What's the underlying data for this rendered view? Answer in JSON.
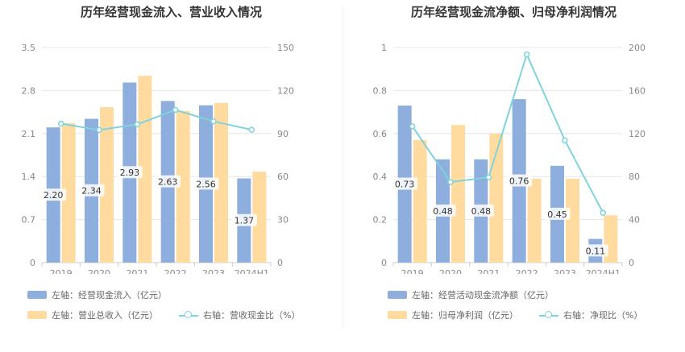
{
  "chart_data": [
    {
      "type": "bar",
      "title": "历年经营现金流入、营业收入情况",
      "categories": [
        "2019",
        "2020",
        "2021",
        "2022",
        "2023",
        "2024H1"
      ],
      "left_axis": {
        "ylim": [
          0,
          3.5
        ],
        "ticks": [
          "0",
          "0.7",
          "1.4",
          "2.1",
          "2.8",
          "3.5"
        ]
      },
      "right_axis": {
        "ylim": [
          0,
          150
        ],
        "ticks": [
          "0",
          "30",
          "60",
          "90",
          "120",
          "150"
        ]
      },
      "series": [
        {
          "name": "左轴：经营现金流入（亿元）",
          "axis": "left",
          "kind": "bar",
          "color": "#8eaedd",
          "values": [
            2.2,
            2.34,
            2.93,
            2.63,
            2.56,
            1.37
          ],
          "labels": [
            "2.20",
            "2.34",
            "2.93",
            "2.63",
            "2.56",
            "1.37"
          ]
        },
        {
          "name": "左轴：营业总收入（亿元）",
          "axis": "left",
          "kind": "bar",
          "color": "#ffdba0",
          "values": [
            2.27,
            2.53,
            3.04,
            2.47,
            2.6,
            1.48
          ]
        },
        {
          "name": "右轴：营收现金比（%）",
          "axis": "right",
          "kind": "line",
          "color": "#7fd3dc",
          "values": [
            96.9,
            92.5,
            96.4,
            106.5,
            98.5,
            92.6
          ]
        }
      ],
      "legend": [
        "左轴：经营现金流入（亿元）",
        "左轴：营业总收入（亿元）",
        "右轴：营收现金比（%）"
      ]
    },
    {
      "type": "bar",
      "title": "历年经营现金流净额、归母净利润情况",
      "categories": [
        "2019",
        "2020",
        "2021",
        "2022",
        "2023",
        "2024H1"
      ],
      "left_axis": {
        "ylim": [
          0,
          1
        ],
        "ticks": [
          "0",
          "0.2",
          "0.4",
          "0.6",
          "0.8",
          "1"
        ]
      },
      "right_axis": {
        "ylim": [
          0,
          200
        ],
        "ticks": [
          "0",
          "40",
          "80",
          "120",
          "160",
          "200"
        ]
      },
      "series": [
        {
          "name": "左轴：经营活动现金流净额（亿元）",
          "axis": "left",
          "kind": "bar",
          "color": "#8eaedd",
          "values": [
            0.73,
            0.48,
            0.48,
            0.76,
            0.45,
            0.11
          ],
          "labels": [
            "0.73",
            "0.48",
            "0.48",
            "0.76",
            "0.45",
            "0.11"
          ]
        },
        {
          "name": "左轴：归母净利润（亿元）",
          "axis": "left",
          "kind": "bar",
          "color": "#ffdba0",
          "values": [
            0.57,
            0.64,
            0.6,
            0.39,
            0.39,
            0.22
          ]
        },
        {
          "name": "右轴：净现比（%）",
          "axis": "right",
          "kind": "line",
          "color": "#7fd3dc",
          "values": [
            126.7,
            74.9,
            79.3,
            193.6,
            113.6,
            46.3
          ]
        }
      ],
      "legend": [
        "左轴：经营活动现金流净额（亿元）",
        "左轴：归母净利润（亿元）",
        "右轴：净现比（%）"
      ]
    }
  ]
}
